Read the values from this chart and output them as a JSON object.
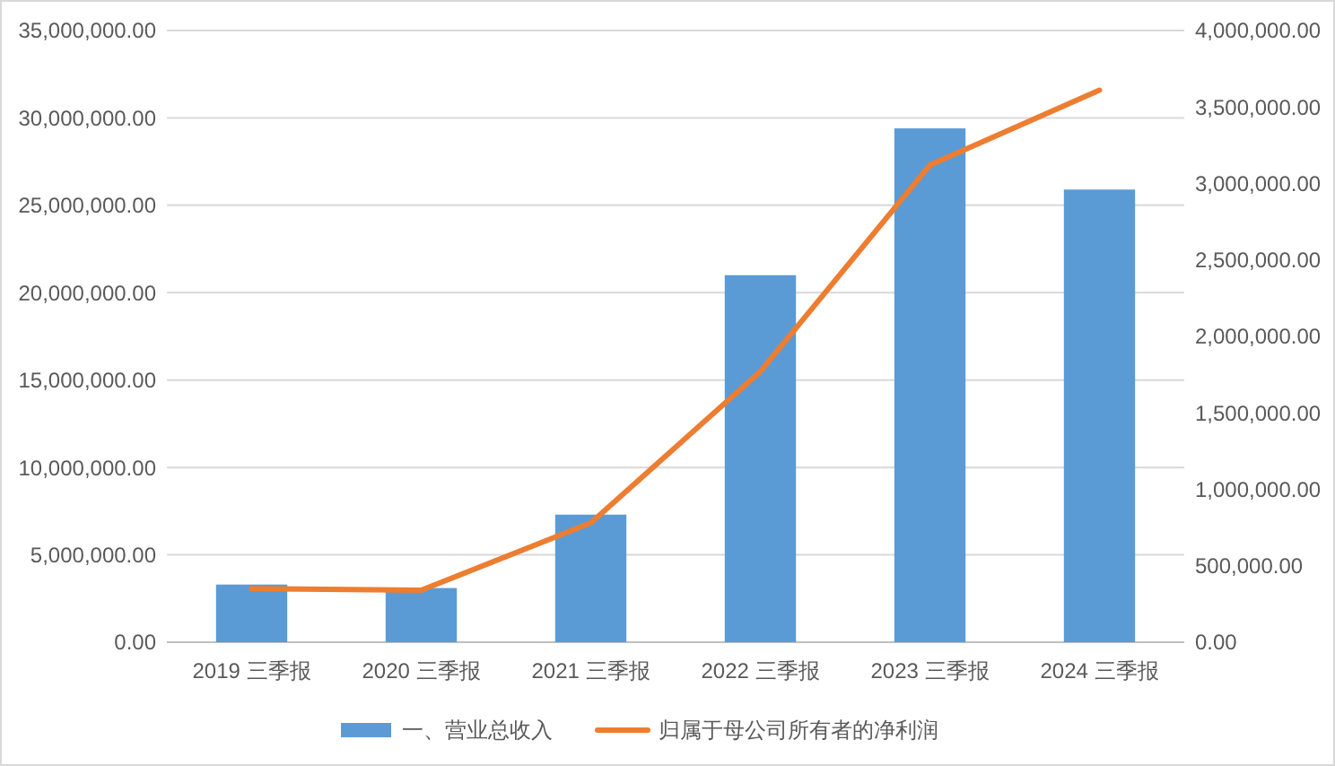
{
  "chart_data": {
    "type": "bar",
    "categories": [
      "2019 三季报",
      "2020 三季报",
      "2021 三季报",
      "2022 三季报",
      "2023 三季报",
      "2024 三季报"
    ],
    "series": [
      {
        "name": "一、营业总收入",
        "color": "#5b9bd5",
        "values": [
          3300000,
          3100000,
          7300000,
          21000000,
          29400000,
          25900000
        ]
      },
      {
        "name": "归属于母公司所有者的净利润",
        "type": "line",
        "axis": "y2",
        "color": "#ed7d31",
        "marker": "none",
        "values": [
          350000,
          340000,
          780000,
          1770000,
          3120000,
          3610000
        ]
      }
    ],
    "ylim": [
      0,
      35000000
    ],
    "yticks": [
      {
        "value": 0,
        "label": "0.00"
      },
      {
        "value": 5000000,
        "label": "5,000,000.00"
      },
      {
        "value": 10000000,
        "label": "10,000,000.00"
      },
      {
        "value": 15000000,
        "label": "15,000,000.00"
      },
      {
        "value": 20000000,
        "label": "20,000,000.00"
      },
      {
        "value": 25000000,
        "label": "25,000,000.00"
      },
      {
        "value": 30000000,
        "label": "30,000,000.00"
      },
      {
        "value": 35000000,
        "label": "35,000,000.00"
      }
    ],
    "y2lim": [
      0,
      4000000
    ],
    "y2ticks": [
      {
        "value": 0,
        "label": "0.00"
      },
      {
        "value": 500000,
        "label": "500,000.00"
      },
      {
        "value": 1000000,
        "label": "1,000,000.00"
      },
      {
        "value": 1500000,
        "label": "1,500,000.00"
      },
      {
        "value": 2000000,
        "label": "2,000,000.00"
      },
      {
        "value": 2500000,
        "label": "2,500,000.00"
      },
      {
        "value": 3000000,
        "label": "3,000,000.00"
      },
      {
        "value": 3500000,
        "label": "3,500,000.00"
      },
      {
        "value": 4000000,
        "label": "4,000,000.00"
      }
    ],
    "grid": "y",
    "legend": "bottom"
  }
}
